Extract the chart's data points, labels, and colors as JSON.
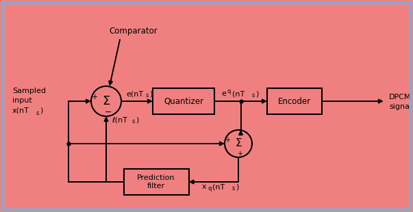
{
  "bg_color": "#F08080",
  "border_color": "#7BAFD4",
  "box_color": "#F08080",
  "line_color": "#000000",
  "text_color": "#000000",
  "comparator_label": "Comparator",
  "sampled_input_line1": "Sampled",
  "sampled_input_line2": "input",
  "x_nts": "x(nT",
  "e_nts": "e(nT",
  "eq_pre": "e",
  "eq_sub": "q",
  "eq_post": "(nT",
  "xhat_pre": "ℓ(nT",
  "xq_pre": "x",
  "xq_sub": "q",
  "xq_post": "(nT",
  "ts_sub": "s",
  "close_paren": ")",
  "quantizer": "Quantizer",
  "encoder": "Encoder",
  "pred_filter_line1": "Prediction",
  "pred_filter_line2": "filter",
  "dpcm_line1": "DPCM",
  "dpcm_line2": "signal",
  "sigma": "Σ",
  "plus": "+",
  "minus": "−",
  "figsize": [
    6.03,
    3.1
  ],
  "dpi": 100
}
